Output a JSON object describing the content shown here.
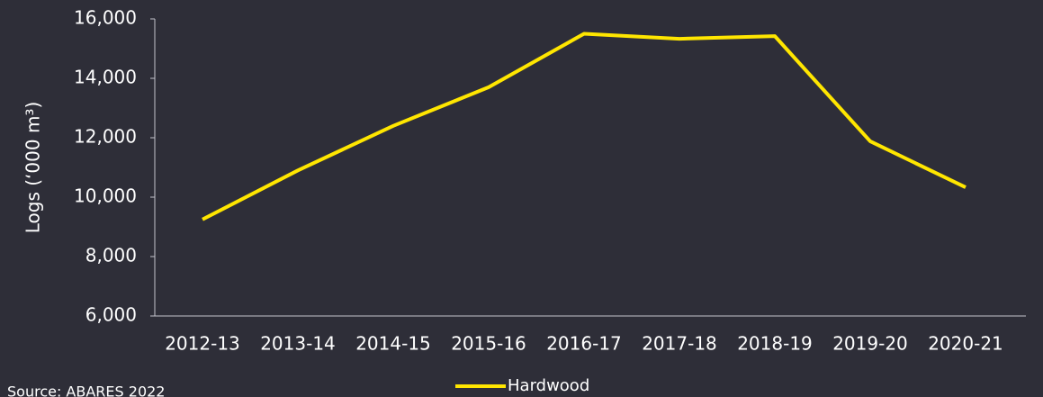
{
  "chart_data": {
    "type": "line",
    "y_label": "Logs (‘000 m³)",
    "source": "Source: ABARES 2022",
    "categories": [
      "2012-13",
      "2013-14",
      "2014-15",
      "2015-16",
      "2016-17",
      "2017-18",
      "2018-19",
      "2019-20",
      "2020-21"
    ],
    "series": [
      {
        "name": "Hardwood",
        "color": "#ffe600",
        "values": [
          9250,
          10900,
          12400,
          13700,
          15500,
          15330,
          15420,
          11880,
          10330
        ]
      }
    ],
    "ylim": [
      6000,
      16000
    ],
    "yticks": [
      {
        "value": 6000,
        "label": "6,000"
      },
      {
        "value": 8000,
        "label": "8,000"
      },
      {
        "value": 10000,
        "label": "10,000"
      },
      {
        "value": 12000,
        "label": "12,000"
      },
      {
        "value": 14000,
        "label": "14,000"
      },
      {
        "value": 16000,
        "label": "16,000"
      }
    ],
    "grid": false,
    "legend": "bottom"
  }
}
